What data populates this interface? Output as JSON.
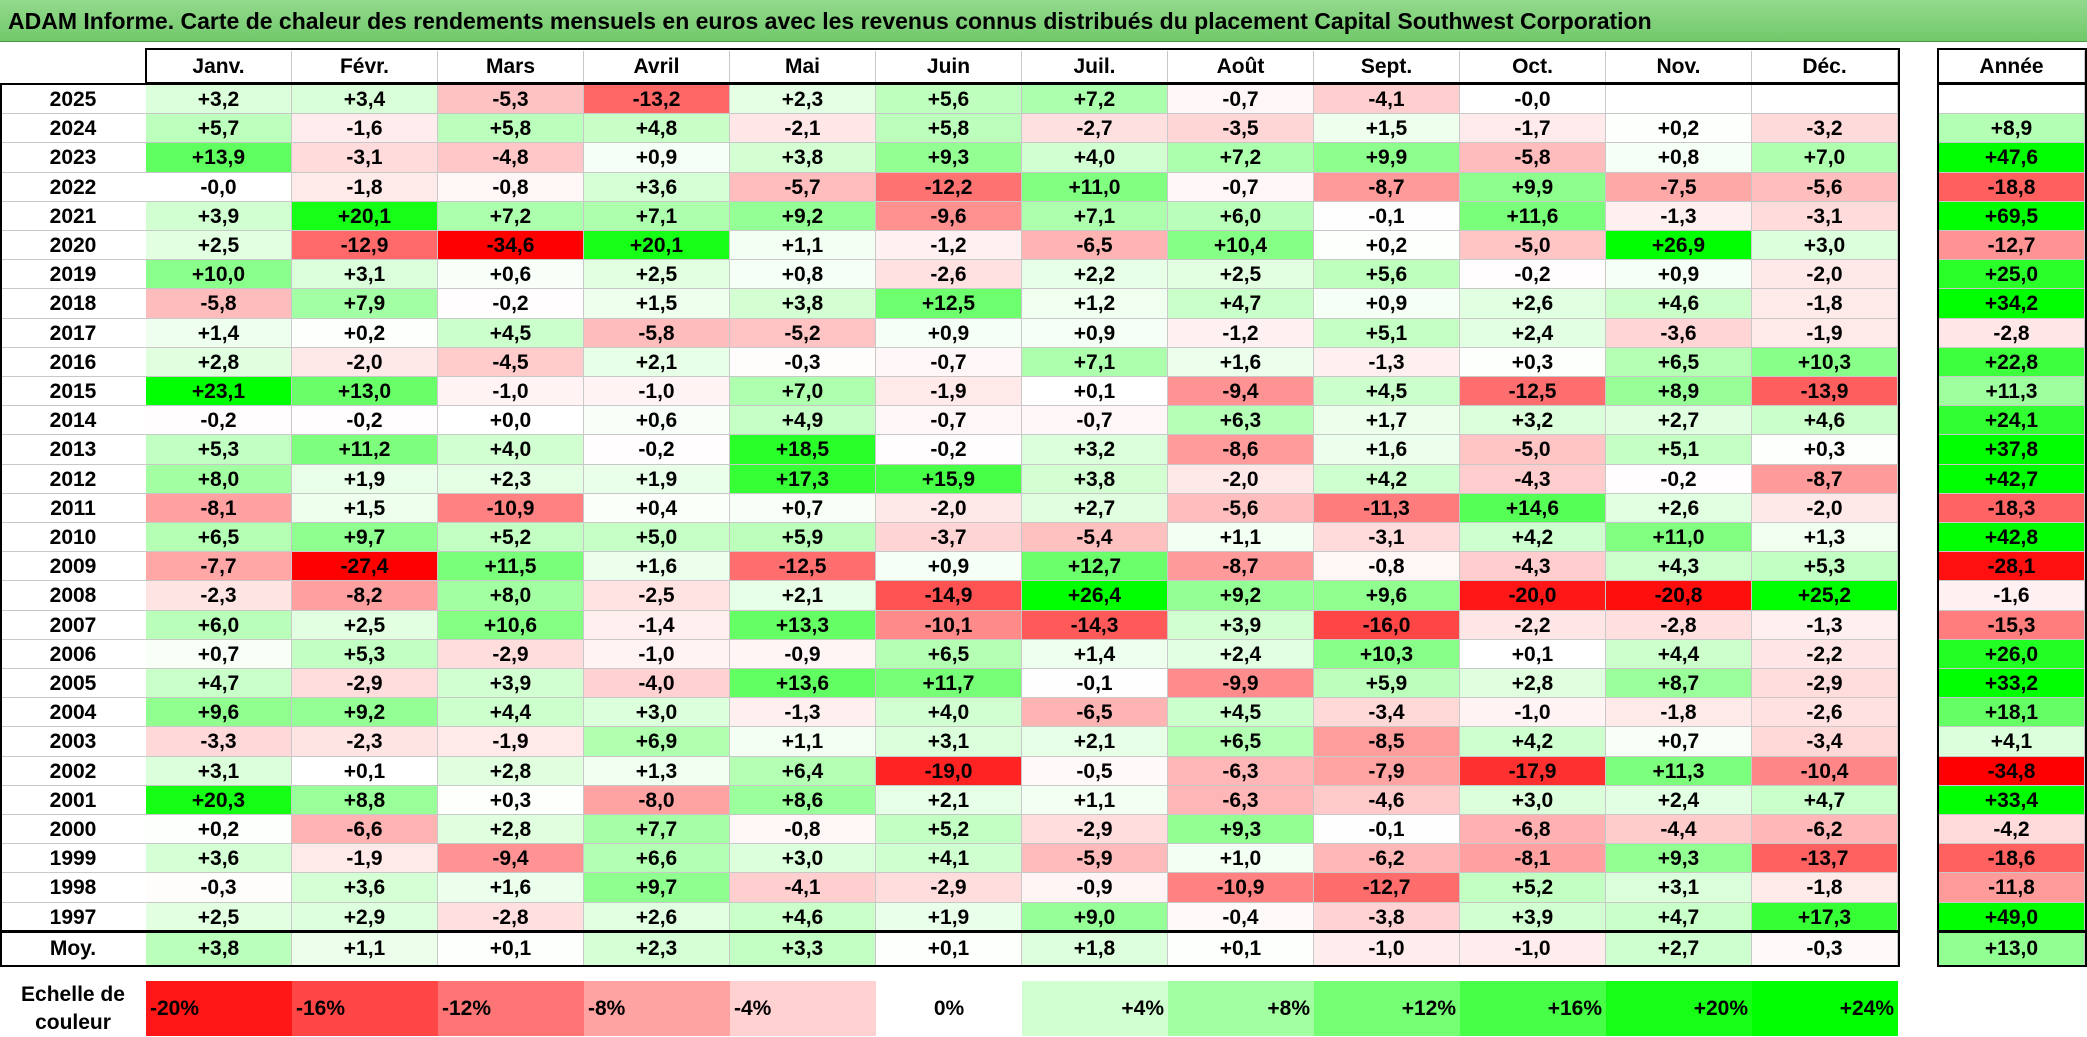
{
  "title": "ADAM Informe. Carte de chaleur des rendements mensuels en euros avec les revenus connus distribués du placement Capital Southwest Corporation",
  "chart_data": {
    "type": "heatmap",
    "columns": [
      "Janv.",
      "Févr.",
      "Mars",
      "Avril",
      "Mai",
      "Juin",
      "Juil.",
      "Août",
      "Sept.",
      "Oct.",
      "Nov.",
      "Déc."
    ],
    "year_header": "Année",
    "rows": [
      {
        "year": "2025",
        "values": [
          "+3,2",
          "+3,4",
          "-5,3",
          "-13,2",
          "+2,3",
          "+5,6",
          "+7,2",
          "-0,7",
          "-4,1",
          "-0,0",
          "",
          ""
        ],
        "annual": ""
      },
      {
        "year": "2024",
        "values": [
          "+5,7",
          "-1,6",
          "+5,8",
          "+4,8",
          "-2,1",
          "+5,8",
          "-2,7",
          "-3,5",
          "+1,5",
          "-1,7",
          "+0,2",
          "-3,2"
        ],
        "annual": "+8,9"
      },
      {
        "year": "2023",
        "values": [
          "+13,9",
          "-3,1",
          "-4,8",
          "+0,9",
          "+3,8",
          "+9,3",
          "+4,0",
          "+7,2",
          "+9,9",
          "-5,8",
          "+0,8",
          "+7,0"
        ],
        "annual": "+47,6"
      },
      {
        "year": "2022",
        "values": [
          "-0,0",
          "-1,8",
          "-0,8",
          "+3,6",
          "-5,7",
          "-12,2",
          "+11,0",
          "-0,7",
          "-8,7",
          "+9,9",
          "-7,5",
          "-5,6"
        ],
        "annual": "-18,8"
      },
      {
        "year": "2021",
        "values": [
          "+3,9",
          "+20,1",
          "+7,2",
          "+7,1",
          "+9,2",
          "-9,6",
          "+7,1",
          "+6,0",
          "-0,1",
          "+11,6",
          "-1,3",
          "-3,1"
        ],
        "annual": "+69,5"
      },
      {
        "year": "2020",
        "values": [
          "+2,5",
          "-12,9",
          "-34,6",
          "+20,1",
          "+1,1",
          "-1,2",
          "-6,5",
          "+10,4",
          "+0,2",
          "-5,0",
          "+26,9",
          "+3,0"
        ],
        "annual": "-12,7"
      },
      {
        "year": "2019",
        "values": [
          "+10,0",
          "+3,1",
          "+0,6",
          "+2,5",
          "+0,8",
          "-2,6",
          "+2,2",
          "+2,5",
          "+5,6",
          "-0,2",
          "+0,9",
          "-2,0"
        ],
        "annual": "+25,0"
      },
      {
        "year": "2018",
        "values": [
          "-5,8",
          "+7,9",
          "-0,2",
          "+1,5",
          "+3,8",
          "+12,5",
          "+1,2",
          "+4,7",
          "+0,9",
          "+2,6",
          "+4,6",
          "-1,8"
        ],
        "annual": "+34,2"
      },
      {
        "year": "2017",
        "values": [
          "+1,4",
          "+0,2",
          "+4,5",
          "-5,8",
          "-5,2",
          "+0,9",
          "+0,9",
          "-1,2",
          "+5,1",
          "+2,4",
          "-3,6",
          "-1,9"
        ],
        "annual": "-2,8"
      },
      {
        "year": "2016",
        "values": [
          "+2,8",
          "-2,0",
          "-4,5",
          "+2,1",
          "-0,3",
          "-0,7",
          "+7,1",
          "+1,6",
          "-1,3",
          "+0,3",
          "+6,5",
          "+10,3"
        ],
        "annual": "+22,8"
      },
      {
        "year": "2015",
        "values": [
          "+23,1",
          "+13,0",
          "-1,0",
          "-1,0",
          "+7,0",
          "-1,9",
          "+0,1",
          "-9,4",
          "+4,5",
          "-12,5",
          "+8,9",
          "-13,9"
        ],
        "annual": "+11,3"
      },
      {
        "year": "2014",
        "values": [
          "-0,2",
          "-0,2",
          "+0,0",
          "+0,6",
          "+4,9",
          "-0,7",
          "-0,7",
          "+6,3",
          "+1,7",
          "+3,2",
          "+2,7",
          "+4,6"
        ],
        "annual": "+24,1"
      },
      {
        "year": "2013",
        "values": [
          "+5,3",
          "+11,2",
          "+4,0",
          "-0,2",
          "+18,5",
          "-0,2",
          "+3,2",
          "-8,6",
          "+1,6",
          "-5,0",
          "+5,1",
          "+0,3"
        ],
        "annual": "+37,8"
      },
      {
        "year": "2012",
        "values": [
          "+8,0",
          "+1,9",
          "+2,3",
          "+1,9",
          "+17,3",
          "+15,9",
          "+3,8",
          "-2,0",
          "+4,2",
          "-4,3",
          "-0,2",
          "-8,7"
        ],
        "annual": "+42,7"
      },
      {
        "year": "2011",
        "values": [
          "-8,1",
          "+1,5",
          "-10,9",
          "+0,4",
          "+0,7",
          "-2,0",
          "+2,7",
          "-5,6",
          "-11,3",
          "+14,6",
          "+2,6",
          "-2,0"
        ],
        "annual": "-18,3"
      },
      {
        "year": "2010",
        "values": [
          "+6,5",
          "+9,7",
          "+5,2",
          "+5,0",
          "+5,9",
          "-3,7",
          "-5,4",
          "+1,1",
          "-3,1",
          "+4,2",
          "+11,0",
          "+1,3"
        ],
        "annual": "+42,8"
      },
      {
        "year": "2009",
        "values": [
          "-7,7",
          "-27,4",
          "+11,5",
          "+1,6",
          "-12,5",
          "+0,9",
          "+12,7",
          "-8,7",
          "-0,8",
          "-4,3",
          "+4,3",
          "+5,3"
        ],
        "annual": "-28,1"
      },
      {
        "year": "2008",
        "values": [
          "-2,3",
          "-8,2",
          "+8,0",
          "-2,5",
          "+2,1",
          "-14,9",
          "+26,4",
          "+9,2",
          "+9,6",
          "-20,0",
          "-20,8",
          "+25,2"
        ],
        "annual": "-1,6"
      },
      {
        "year": "2007",
        "values": [
          "+6,0",
          "+2,5",
          "+10,6",
          "-1,4",
          "+13,3",
          "-10,1",
          "-14,3",
          "+3,9",
          "-16,0",
          "-2,2",
          "-2,8",
          "-1,3"
        ],
        "annual": "-15,3"
      },
      {
        "year": "2006",
        "values": [
          "+0,7",
          "+5,3",
          "-2,9",
          "-1,0",
          "-0,9",
          "+6,5",
          "+1,4",
          "+2,4",
          "+10,3",
          "+0,1",
          "+4,4",
          "-2,2"
        ],
        "annual": "+26,0"
      },
      {
        "year": "2005",
        "values": [
          "+4,7",
          "-2,9",
          "+3,9",
          "-4,0",
          "+13,6",
          "+11,7",
          "-0,1",
          "-9,9",
          "+5,9",
          "+2,8",
          "+8,7",
          "-2,9"
        ],
        "annual": "+33,2"
      },
      {
        "year": "2004",
        "values": [
          "+9,6",
          "+9,2",
          "+4,4",
          "+3,0",
          "-1,3",
          "+4,0",
          "-6,5",
          "+4,5",
          "-3,4",
          "-1,0",
          "-1,8",
          "-2,6"
        ],
        "annual": "+18,1"
      },
      {
        "year": "2003",
        "values": [
          "-3,3",
          "-2,3",
          "-1,9",
          "+6,9",
          "+1,1",
          "+3,1",
          "+2,1",
          "+6,5",
          "-8,5",
          "+4,2",
          "+0,7",
          "-3,4"
        ],
        "annual": "+4,1"
      },
      {
        "year": "2002",
        "values": [
          "+3,1",
          "+0,1",
          "+2,8",
          "+1,3",
          "+6,4",
          "-19,0",
          "-0,5",
          "-6,3",
          "-7,9",
          "-17,9",
          "+11,3",
          "-10,4"
        ],
        "annual": "-34,8"
      },
      {
        "year": "2001",
        "values": [
          "+20,3",
          "+8,8",
          "+0,3",
          "-8,0",
          "+8,6",
          "+2,1",
          "+1,1",
          "-6,3",
          "-4,6",
          "+3,0",
          "+2,4",
          "+4,7"
        ],
        "annual": "+33,4"
      },
      {
        "year": "2000",
        "values": [
          "+0,2",
          "-6,6",
          "+2,8",
          "+7,7",
          "-0,8",
          "+5,2",
          "-2,9",
          "+9,3",
          "-0,1",
          "-6,8",
          "-4,4",
          "-6,2"
        ],
        "annual": "-4,2"
      },
      {
        "year": "1999",
        "values": [
          "+3,6",
          "-1,9",
          "-9,4",
          "+6,6",
          "+3,0",
          "+4,1",
          "-5,9",
          "+1,0",
          "-6,2",
          "-8,1",
          "+9,3",
          "-13,7"
        ],
        "annual": "-18,6"
      },
      {
        "year": "1998",
        "values": [
          "-0,3",
          "+3,6",
          "+1,6",
          "+9,7",
          "-4,1",
          "-2,9",
          "-0,9",
          "-10,9",
          "-12,7",
          "+5,2",
          "+3,1",
          "-1,8"
        ],
        "annual": "-11,8"
      },
      {
        "year": "1997",
        "values": [
          "+2,5",
          "+2,9",
          "-2,8",
          "+2,6",
          "+4,6",
          "+1,9",
          "+9,0",
          "-0,4",
          "-3,8",
          "+3,9",
          "+4,7",
          "+17,3"
        ],
        "annual": "+49,0"
      }
    ],
    "average": {
      "label": "Moy.",
      "values": [
        "+3,8",
        "+1,1",
        "+0,1",
        "+2,3",
        "+3,3",
        "+0,1",
        "+1,8",
        "+0,1",
        "-1,0",
        "-1,0",
        "+2,7",
        "-0,3"
      ],
      "annual": "+13,0"
    },
    "legend": {
      "label": "Echelle de couleur",
      "steps": [
        "-20%",
        "-16%",
        "-12%",
        "-8%",
        "-4%",
        "0%",
        "+4%",
        "+8%",
        "+12%",
        "+16%",
        "+20%",
        "+24%"
      ]
    },
    "colors": {
      "negative": "#ff0000",
      "positive": "#00ff00",
      "neutral": "#ffffff"
    }
  }
}
